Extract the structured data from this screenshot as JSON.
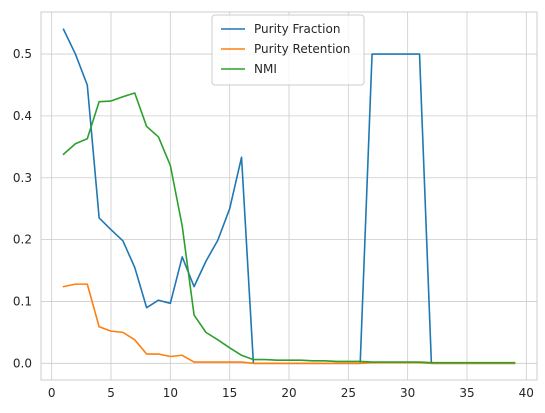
{
  "chart_data": {
    "type": "line",
    "title": "",
    "xlabel": "",
    "ylabel": "",
    "xlim": [
      -0.9,
      40.9
    ],
    "ylim": [
      -0.027,
      0.568
    ],
    "grid": true,
    "legend_position": "top-center",
    "x_ticks": [
      {
        "value": 0,
        "label": "0"
      },
      {
        "value": 5,
        "label": "5"
      },
      {
        "value": 10,
        "label": "10"
      },
      {
        "value": 15,
        "label": "15"
      },
      {
        "value": 20,
        "label": "20"
      },
      {
        "value": 25,
        "label": "25"
      },
      {
        "value": 30,
        "label": "30"
      },
      {
        "value": 35,
        "label": "35"
      },
      {
        "value": 40,
        "label": "40"
      }
    ],
    "y_ticks": [
      {
        "value": 0.0,
        "label": "0.0"
      },
      {
        "value": 0.1,
        "label": "0.1"
      },
      {
        "value": 0.2,
        "label": "0.2"
      },
      {
        "value": 0.3,
        "label": "0.3"
      },
      {
        "value": 0.4,
        "label": "0.4"
      },
      {
        "value": 0.5,
        "label": "0.5"
      }
    ],
    "x": [
      1,
      2,
      3,
      4,
      5,
      6,
      7,
      8,
      9,
      10,
      11,
      12,
      13,
      14,
      15,
      16,
      17,
      18,
      19,
      20,
      21,
      22,
      23,
      24,
      25,
      26,
      27,
      28,
      29,
      30,
      31,
      32,
      33,
      34,
      35,
      36,
      37,
      38,
      39
    ],
    "series": [
      {
        "name": "Purity Fraction",
        "color": "#1f77b4",
        "values": [
          0.54,
          0.5,
          0.45,
          0.235,
          0.216,
          0.198,
          0.155,
          0.09,
          0.102,
          0.097,
          0.172,
          0.124,
          0.165,
          0.199,
          0.25,
          0.333,
          0.0,
          0.0,
          0.0,
          0.0,
          0.0,
          0.0,
          0.0,
          0.0,
          0.0,
          0.0,
          0.5,
          0.5,
          0.5,
          0.5,
          0.5,
          0.0,
          0.0,
          0.0,
          0.0,
          0.0,
          0.0,
          0.0,
          0.0
        ]
      },
      {
        "name": "Purity Retention",
        "color": "#ff7f0e",
        "values": [
          0.124,
          0.128,
          0.128,
          0.059,
          0.052,
          0.05,
          0.038,
          0.015,
          0.015,
          0.011,
          0.013,
          0.002,
          0.002,
          0.002,
          0.002,
          0.002,
          0.0,
          0.0,
          0.0,
          0.0,
          0.0,
          0.0,
          0.0,
          0.0,
          0.0,
          0.0,
          0.001,
          0.001,
          0.001,
          0.001,
          0.001,
          0.0,
          0.0,
          0.0,
          0.0,
          0.0,
          0.0,
          0.0,
          0.0
        ]
      },
      {
        "name": "NMI",
        "color": "#2ca02c",
        "values": [
          0.338,
          0.355,
          0.363,
          0.423,
          0.424,
          0.431,
          0.437,
          0.383,
          0.366,
          0.32,
          0.222,
          0.078,
          0.05,
          0.038,
          0.025,
          0.013,
          0.006,
          0.006,
          0.005,
          0.005,
          0.005,
          0.004,
          0.004,
          0.003,
          0.003,
          0.003,
          0.002,
          0.002,
          0.002,
          0.002,
          0.002,
          0.001,
          0.001,
          0.001,
          0.001,
          0.001,
          0.001,
          0.001,
          0.001
        ]
      }
    ]
  }
}
